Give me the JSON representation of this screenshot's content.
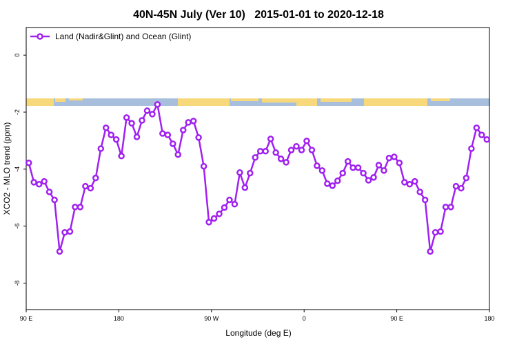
{
  "chart_data": {
    "type": "line",
    "title": "40N-45N July (Ver 10)   2015-01-01 to 2020-12-18",
    "x_label": "Longitude (deg E)",
    "y_label": "XCO2 - MLO trend (ppm)",
    "x": [
      92.5,
      97.5,
      102.5,
      107.5,
      112.5,
      117.5,
      122.5,
      127.5,
      132.5,
      137.5,
      142.5,
      147.5,
      152.5,
      157.5,
      162.5,
      167.5,
      172.5,
      177.5,
      182.5,
      187.5,
      192.5,
      197.5,
      202.5,
      207.5,
      212.5,
      217.5,
      222.5,
      227.5,
      232.5,
      237.5,
      242.5,
      247.5,
      252.5,
      257.5,
      262.5,
      267.5,
      272.5,
      277.5,
      282.5,
      287.5,
      292.5,
      297.5,
      302.5,
      307.5,
      312.5,
      317.5,
      322.5,
      327.5,
      332.5,
      337.5,
      342.5,
      347.5,
      352.5,
      357.5,
      362.5,
      367.5,
      372.5,
      377.5,
      382.5,
      387.5,
      392.5,
      397.5,
      402.5,
      407.5,
      412.5,
      417.5,
      422.5,
      427.5,
      432.5,
      437.5,
      442.5,
      447.5,
      452.5,
      457.5,
      462.5,
      467.5,
      472.5,
      477.5,
      482.5,
      487.5,
      492.5,
      497.5,
      502.5,
      507.5,
      512.5,
      517.5,
      522.5,
      527.5,
      532.5,
      537.5
    ],
    "series": [
      {
        "name": "Land (Nadir&Glint) and Ocean (Glint)",
        "color": "#a020f0",
        "values": [
          -3.78,
          -4.46,
          -4.53,
          -4.43,
          -4.8,
          -5.08,
          -6.89,
          -6.22,
          -6.19,
          -5.33,
          -5.33,
          -4.6,
          -4.67,
          -4.31,
          -3.28,
          -2.55,
          -2.8,
          -2.96,
          -3.54,
          -2.19,
          -2.39,
          -2.87,
          -2.29,
          -1.95,
          -2.07,
          -1.73,
          -2.75,
          -2.8,
          -3.11,
          -3.49,
          -2.63,
          -2.36,
          -2.31,
          -2.89,
          -3.9,
          -5.86,
          -5.73,
          -5.57,
          -5.35,
          -5.08,
          -5.23,
          -4.12,
          -4.65,
          -4.14,
          -3.59,
          -3.37,
          -3.37,
          -2.94,
          -3.42,
          -3.64,
          -3.76,
          -3.33,
          -3.2,
          -3.33,
          -3.01,
          -3.33,
          -3.88,
          -4.05,
          -4.51,
          -4.58,
          -4.41,
          -4.14,
          -3.73,
          -3.95,
          -3.95,
          -4.14,
          -4.39,
          -4.29,
          -3.86,
          -4.05,
          -3.61,
          -3.57,
          -3.78,
          -4.46,
          -4.53,
          -4.43,
          -4.8,
          -5.08,
          -6.89,
          -6.22,
          -6.19,
          -5.33,
          -5.33,
          -4.6,
          -4.67,
          -4.31,
          -3.28,
          -2.55,
          -2.8,
          -2.96
        ]
      }
    ],
    "xlim": [
      90,
      540
    ],
    "xticks": [
      {
        "value": 90,
        "label": "90 E"
      },
      180,
      {
        "value": 270,
        "label": "90 W"
      },
      {
        "value": 360,
        "label": "0"
      },
      {
        "value": 450,
        "label": "90 E"
      },
      {
        "value": 540,
        "label": "180"
      }
    ],
    "ylim": [
      -8.93,
      0.97
    ],
    "yticks": [
      0,
      -2,
      -4,
      -6,
      -8
    ],
    "legend": "top-left"
  }
}
